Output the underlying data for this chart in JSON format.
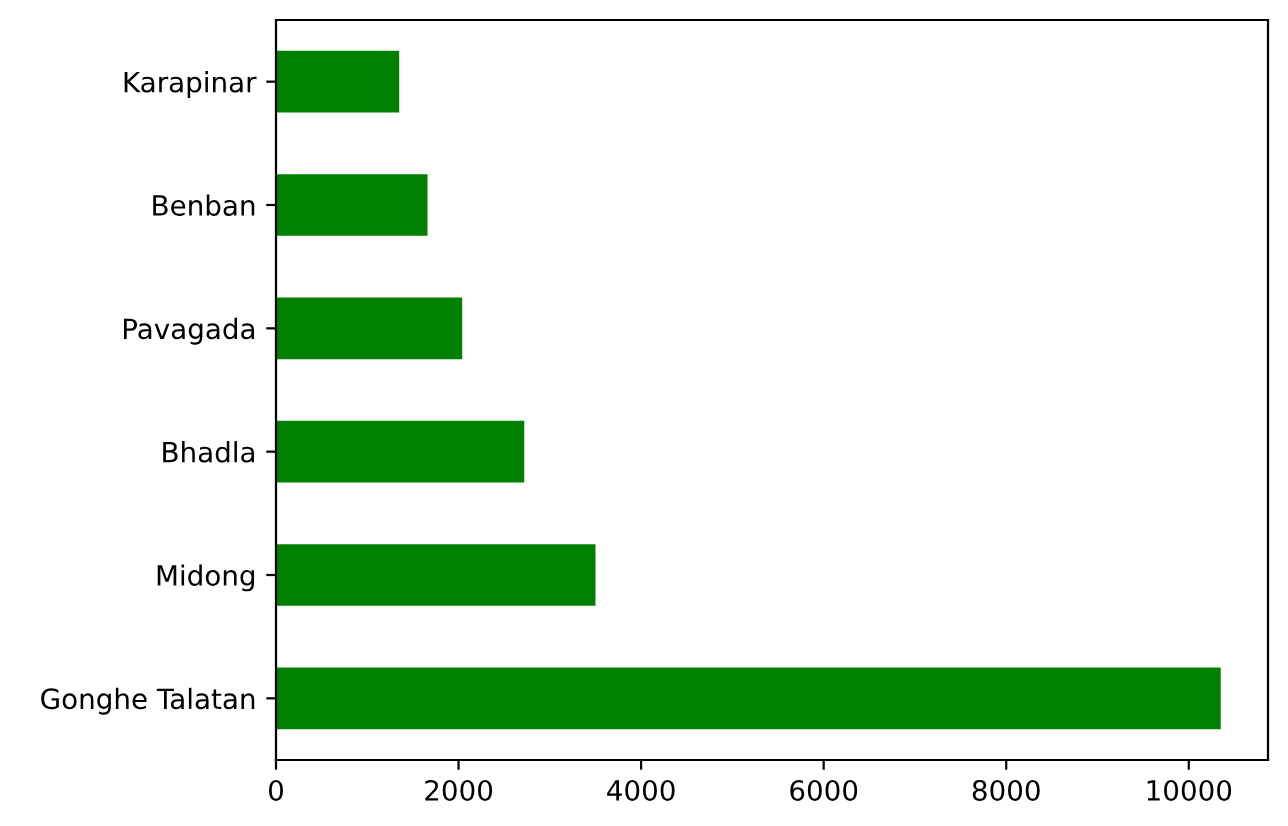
{
  "chart_data": {
    "type": "bar",
    "orientation": "horizontal",
    "categories": [
      "Karapinar",
      "Benban",
      "Pavagada",
      "Bhadla",
      "Midong",
      "Gonghe Talatan"
    ],
    "values": [
      1350,
      1660,
      2040,
      2720,
      3500,
      10350
    ],
    "color": "#008000",
    "xlim": [
      0,
      10868
    ],
    "xticks": [
      0,
      2000,
      4000,
      6000,
      8000,
      10000
    ],
    "grid": false,
    "legend": false
  }
}
